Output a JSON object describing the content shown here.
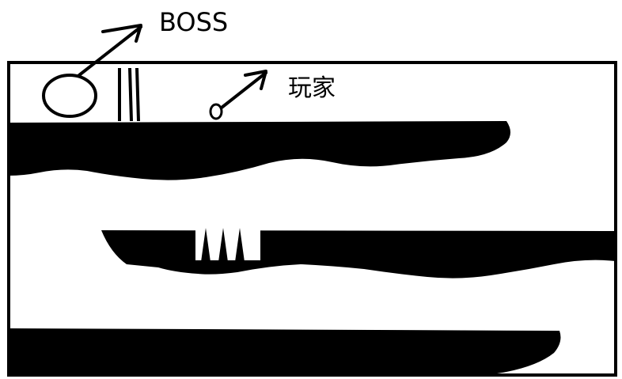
{
  "annotations": {
    "boss_label": "BOSS",
    "player_label": "玩家"
  },
  "colors": {
    "ink": "#000000",
    "background": "#ffffff"
  },
  "sprites": {
    "boss_icon": "oval-icon",
    "player_icon": "small-circle-icon",
    "gate_icon": "double-bar-gate-icon",
    "spike_icon": "triangle-spike-icon",
    "spike_count": 3
  }
}
